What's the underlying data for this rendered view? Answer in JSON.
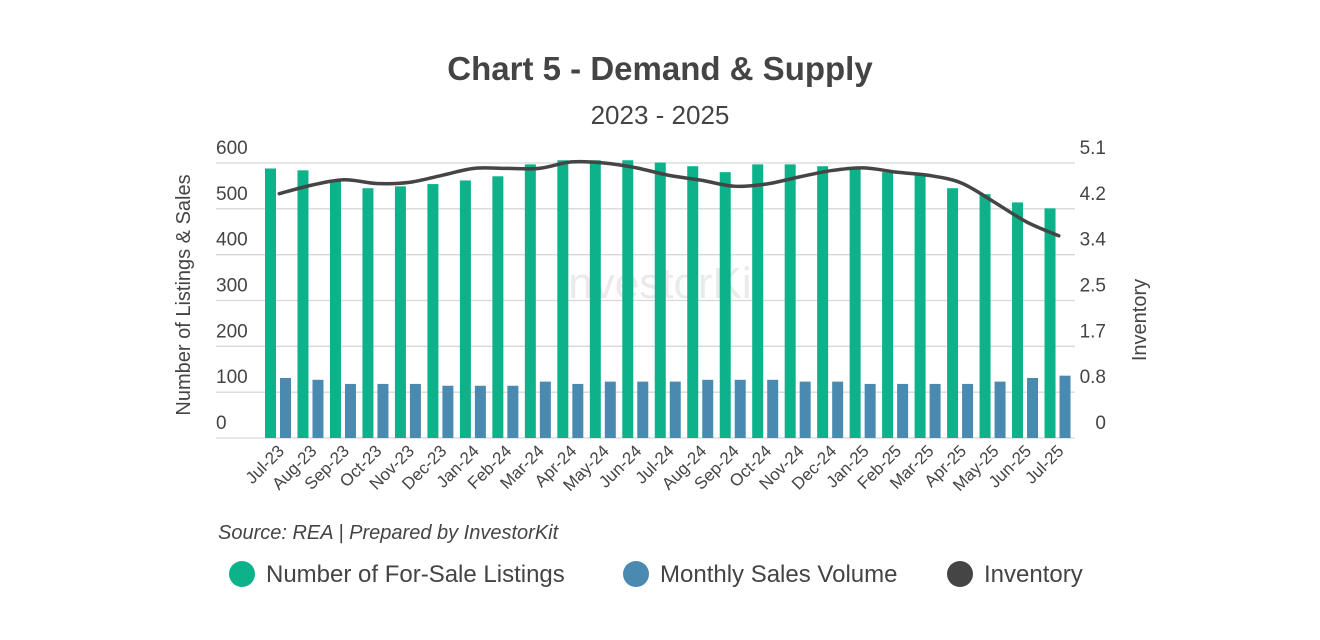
{
  "chart_data": {
    "type": "bar",
    "title": "Chart 5 - Demand & Supply",
    "subtitle": "2023 - 2025",
    "source": "Source: REA | Prepared by InvestorKit",
    "watermark": "InvestorKit",
    "ylabel": "Number of Listings & Sales",
    "y2label": "Inventory",
    "ylim": [
      0,
      600
    ],
    "y2lim": [
      0,
      5.1
    ],
    "yticks": [
      "0",
      "100",
      "200",
      "300",
      "400",
      "500",
      "600"
    ],
    "y2ticks": [
      "0",
      "0.8",
      "1.7",
      "2.5",
      "3.4",
      "4.2",
      "5.1"
    ],
    "grid": true,
    "legend_position": "bottom",
    "categories": [
      "Jul-23",
      "Aug-23",
      "Sep-23",
      "Oct-23",
      "Nov-23",
      "Dec-23",
      "Jan-24",
      "Feb-24",
      "Mar-24",
      "Apr-24",
      "May-24",
      "Jun-24",
      "Jul-24",
      "Aug-24",
      "Sep-24",
      "Oct-24",
      "Nov-24",
      "Dec-24",
      "Jan-25",
      "Feb-25",
      "Mar-25",
      "Apr-25",
      "May-25",
      "Jun-25",
      "Jul-25"
    ],
    "series": [
      {
        "name": "Number of For-Sale Listings",
        "type": "bar",
        "axis": "left",
        "color": "#0db28a",
        "values": [
          588,
          584,
          560,
          545,
          549,
          554,
          562,
          571,
          597,
          606,
          606,
          606,
          601,
          593,
          580,
          597,
          597,
          593,
          588,
          580,
          573,
          545,
          532,
          514,
          501
        ]
      },
      {
        "name": "Monthly Sales Volume",
        "type": "bar",
        "axis": "left",
        "color": "#4a8ab0",
        "values": [
          131,
          127,
          118,
          118,
          118,
          114,
          114,
          114,
          123,
          118,
          123,
          123,
          123,
          127,
          127,
          127,
          123,
          123,
          118,
          118,
          118,
          118,
          123,
          131,
          136
        ]
      },
      {
        "name": "Inventory",
        "type": "line",
        "axis": "right",
        "color": "#454545",
        "values": [
          4.53,
          4.69,
          4.79,
          4.72,
          4.74,
          4.87,
          5.0,
          5.0,
          5.0,
          5.12,
          5.1,
          5.01,
          4.87,
          4.78,
          4.67,
          4.71,
          4.84,
          4.96,
          5.01,
          4.93,
          4.87,
          4.73,
          4.38,
          4.01,
          3.75
        ]
      }
    ]
  }
}
